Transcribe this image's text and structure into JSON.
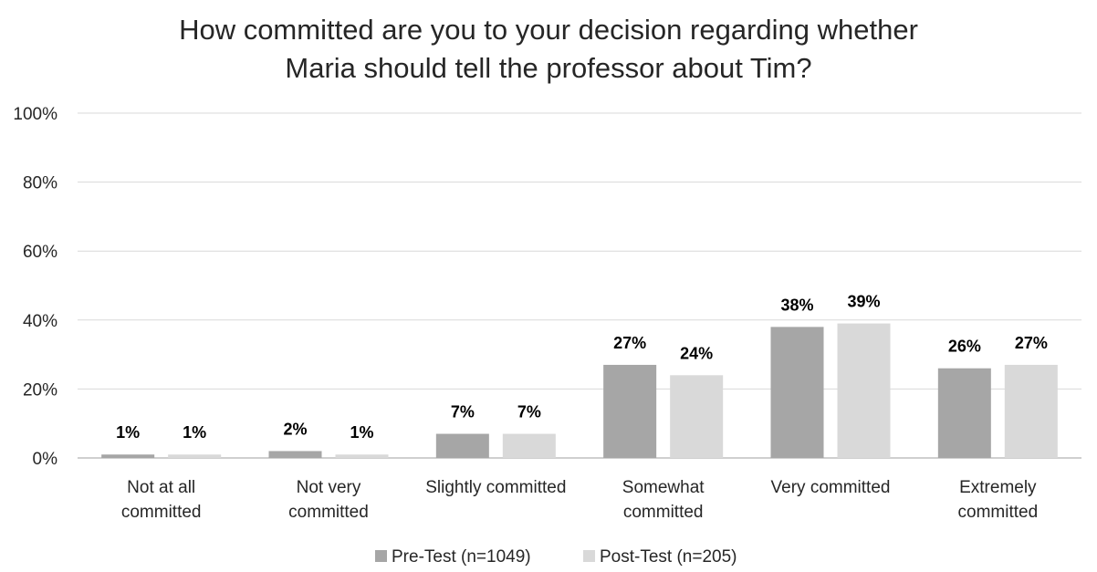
{
  "chart_data": {
    "type": "bar",
    "title_lines": [
      "How committed are you to your decision regarding whether",
      "Maria should tell the professor about Tim?"
    ],
    "categories": [
      [
        "Not at all",
        "committed"
      ],
      [
        "Not very",
        "committed"
      ],
      [
        "Slightly committed"
      ],
      [
        "Somewhat",
        "committed"
      ],
      [
        "Very committed"
      ],
      [
        "Extremely",
        "committed"
      ]
    ],
    "series": [
      {
        "name": "Pre-Test (n=1049)",
        "color": "#a6a6a6",
        "values": [
          1,
          2,
          7,
          27,
          38,
          26
        ],
        "labels": [
          "1%",
          "2%",
          "7%",
          "27%",
          "38%",
          "26%"
        ]
      },
      {
        "name": "Post-Test (n=205)",
        "color": "#d9d9d9",
        "values": [
          1,
          1,
          7,
          24,
          39,
          27
        ],
        "labels": [
          "1%",
          "1%",
          "7%",
          "24%",
          "39%",
          "27%"
        ]
      }
    ],
    "y_ticks": [
      "0%",
      "20%",
      "40%",
      "60%",
      "80%",
      "100%"
    ],
    "ylim": [
      0,
      100
    ],
    "grid": true,
    "gridline_color": "#d9d9d9",
    "legend_position": "bottom"
  }
}
